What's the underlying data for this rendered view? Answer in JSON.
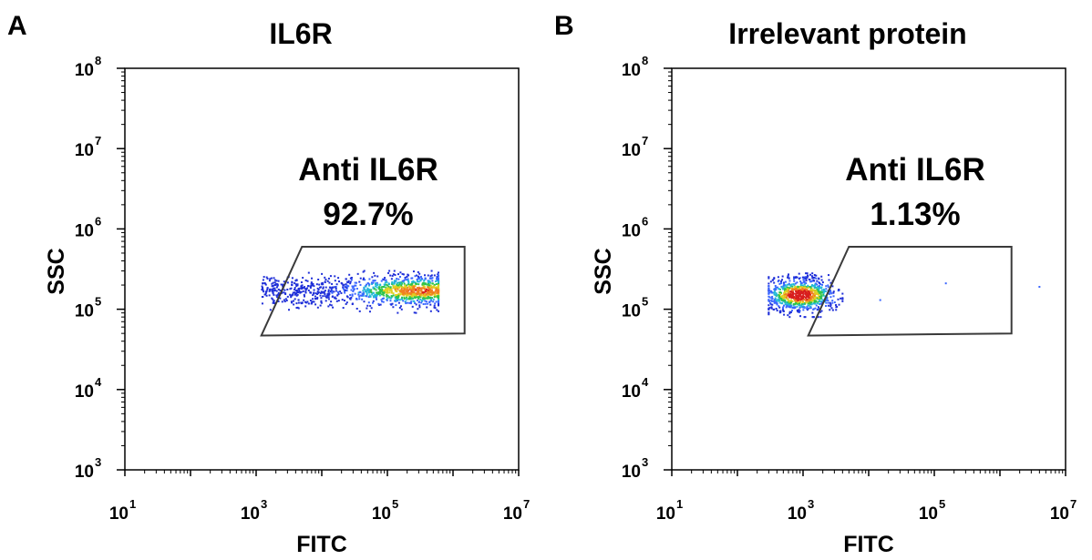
{
  "chart_data": [
    {
      "type": "scatter",
      "panel_label": "A",
      "title": "IL6R",
      "xlabel": "FITC",
      "ylabel": "SSC",
      "x_scale": "log",
      "y_scale": "log",
      "xlim": [
        10,
        10000000
      ],
      "ylim": [
        1000,
        100000000
      ],
      "x_ticks": [
        {
          "base": "10",
          "exp": "1",
          "value": 10
        },
        {
          "base": "10",
          "exp": "3",
          "value": 1000
        },
        {
          "base": "10",
          "exp": "5",
          "value": 100000
        },
        {
          "base": "10",
          "exp": "7",
          "value": 10000000
        }
      ],
      "y_ticks": [
        {
          "base": "10",
          "exp": "3",
          "value": 1000
        },
        {
          "base": "10",
          "exp": "4",
          "value": 10000
        },
        {
          "base": "10",
          "exp": "5",
          "value": 100000
        },
        {
          "base": "10",
          "exp": "6",
          "value": 1000000
        },
        {
          "base": "10",
          "exp": "7",
          "value": 10000000
        },
        {
          "base": "10",
          "exp": "8",
          "value": 100000000
        }
      ],
      "gate": {
        "name": "Anti IL6R",
        "percent": "92.7%",
        "polygon": [
          [
            5000,
            600000
          ],
          [
            1500000,
            600000
          ],
          [
            1500000,
            50000
          ],
          [
            1200,
            47000
          ]
        ]
      },
      "populations": [
        {
          "x_range": [
            1200,
            600000
          ],
          "y_range": [
            90000,
            300000
          ],
          "count": 1300,
          "density": "medium",
          "peak_x": 300000,
          "peak_y": 170000
        }
      ],
      "density_colors": [
        "#1f2fd8",
        "#3a66ff",
        "#22b8d8",
        "#2ec44a",
        "#e0d020",
        "#f08020",
        "#d81e1e"
      ]
    },
    {
      "type": "scatter",
      "panel_label": "B",
      "title": "Irrelevant protein",
      "xlabel": "FITC",
      "ylabel": "SSC",
      "x_scale": "log",
      "y_scale": "log",
      "xlim": [
        10,
        10000000
      ],
      "ylim": [
        1000,
        100000000
      ],
      "x_ticks": [
        {
          "base": "10",
          "exp": "1",
          "value": 10
        },
        {
          "base": "10",
          "exp": "3",
          "value": 1000
        },
        {
          "base": "10",
          "exp": "5",
          "value": 100000
        },
        {
          "base": "10",
          "exp": "7",
          "value": 10000000
        }
      ],
      "y_ticks": [
        {
          "base": "10",
          "exp": "3",
          "value": 1000
        },
        {
          "base": "10",
          "exp": "4",
          "value": 10000
        },
        {
          "base": "10",
          "exp": "5",
          "value": 100000
        },
        {
          "base": "10",
          "exp": "6",
          "value": 1000000
        },
        {
          "base": "10",
          "exp": "7",
          "value": 10000000
        },
        {
          "base": "10",
          "exp": "8",
          "value": 100000000
        }
      ],
      "gate": {
        "name": "Anti IL6R",
        "percent": "1.13%",
        "polygon": [
          [
            5000,
            600000
          ],
          [
            1500000,
            600000
          ],
          [
            1500000,
            50000
          ],
          [
            1200,
            47000
          ]
        ]
      },
      "populations": [
        {
          "x_range": [
            300,
            4000
          ],
          "y_range": [
            80000,
            280000
          ],
          "count": 900,
          "density": "high",
          "peak_x": 900,
          "peak_y": 150000
        }
      ],
      "outliers": [
        {
          "x": 15000,
          "y": 130000
        },
        {
          "x": 150000,
          "y": 210000
        },
        {
          "x": 4000000,
          "y": 190000
        }
      ],
      "density_colors": [
        "#1f2fd8",
        "#3a66ff",
        "#22b8d8",
        "#2ec44a",
        "#e0d020",
        "#f08020",
        "#d81e1e"
      ]
    }
  ]
}
